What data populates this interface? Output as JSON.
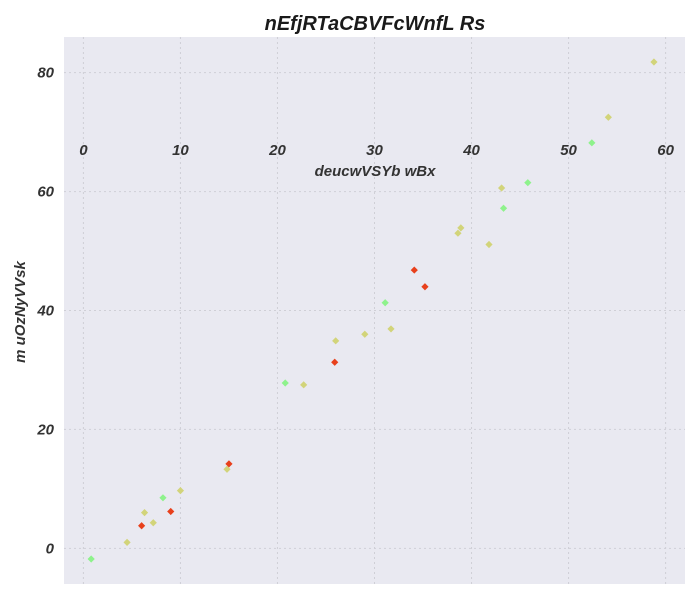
{
  "chart_data": {
    "type": "scatter",
    "title": "nEfjRTaCBVFcWnfL Rs",
    "xlabel": "deucwVSYb wBx",
    "ylabel": "m uOzNyVVsk",
    "xlim": [
      -2,
      62
    ],
    "ylim": [
      -6,
      86
    ],
    "xticks": [
      0,
      10,
      20,
      30,
      40,
      50,
      60
    ],
    "yticks": [
      0,
      20,
      40,
      60,
      80
    ],
    "x_axis_position": "top-inside",
    "grid": true,
    "legend": "none",
    "colors": {
      "background": "#e9e9f1",
      "grid": "#cfcfd6",
      "red": "#e8401c",
      "khaki": "#d2d47a",
      "green": "#8ef28c"
    },
    "points": [
      {
        "x": 0.8,
        "y": -1.8,
        "color": "green"
      },
      {
        "x": 4.5,
        "y": 1.0,
        "color": "khaki"
      },
      {
        "x": 6.0,
        "y": 3.8,
        "color": "red"
      },
      {
        "x": 6.3,
        "y": 6.0,
        "color": "khaki"
      },
      {
        "x": 7.2,
        "y": 4.3,
        "color": "khaki"
      },
      {
        "x": 8.2,
        "y": 8.5,
        "color": "green"
      },
      {
        "x": 9.0,
        "y": 6.2,
        "color": "red"
      },
      {
        "x": 10.0,
        "y": 9.7,
        "color": "khaki"
      },
      {
        "x": 14.8,
        "y": 13.3,
        "color": "khaki"
      },
      {
        "x": 15.0,
        "y": 14.2,
        "color": "red"
      },
      {
        "x": 20.8,
        "y": 27.8,
        "color": "green"
      },
      {
        "x": 22.7,
        "y": 27.5,
        "color": "khaki"
      },
      {
        "x": 25.9,
        "y": 31.3,
        "color": "red"
      },
      {
        "x": 26.0,
        "y": 34.9,
        "color": "khaki"
      },
      {
        "x": 29.0,
        "y": 36.0,
        "color": "khaki"
      },
      {
        "x": 31.1,
        "y": 41.3,
        "color": "green"
      },
      {
        "x": 31.7,
        "y": 36.9,
        "color": "khaki"
      },
      {
        "x": 34.1,
        "y": 46.8,
        "color": "red"
      },
      {
        "x": 35.2,
        "y": 44.0,
        "color": "red"
      },
      {
        "x": 38.6,
        "y": 53.0,
        "color": "khaki"
      },
      {
        "x": 38.9,
        "y": 53.9,
        "color": "khaki"
      },
      {
        "x": 41.8,
        "y": 51.1,
        "color": "khaki"
      },
      {
        "x": 43.1,
        "y": 60.6,
        "color": "khaki"
      },
      {
        "x": 43.3,
        "y": 57.2,
        "color": "green"
      },
      {
        "x": 45.8,
        "y": 61.5,
        "color": "green"
      },
      {
        "x": 52.4,
        "y": 68.2,
        "color": "green"
      },
      {
        "x": 54.1,
        "y": 72.5,
        "color": "khaki"
      },
      {
        "x": 58.8,
        "y": 81.8,
        "color": "khaki"
      }
    ]
  }
}
